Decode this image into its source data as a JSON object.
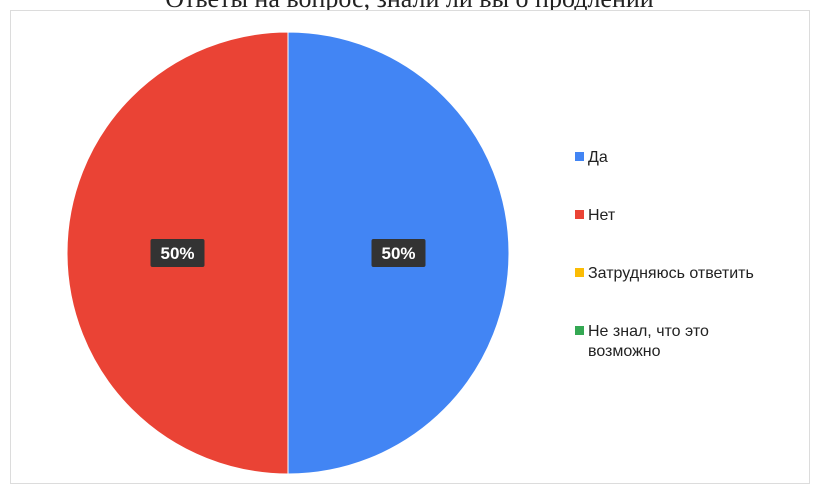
{
  "header": {
    "top_text": "Ответы на вопрос, знали ли вы о продлении"
  },
  "colors": {
    "da": "#4285f4",
    "net": "#ea4335",
    "zatr": "#fbbc04",
    "ne_znal": "#34a853",
    "label_bg": "#333333"
  },
  "chart_data": {
    "type": "pie",
    "title": "",
    "legend_position": "right",
    "slices": [
      {
        "label": "Да",
        "value": 50,
        "display": "50%",
        "color": "#4285f4"
      },
      {
        "label": "Нет",
        "value": 50,
        "display": "50%",
        "color": "#ea4335"
      },
      {
        "label": "Затрудняюсь ответить",
        "value": 0,
        "display": "",
        "color": "#fbbc04"
      },
      {
        "label": "Не знал, что это возможно",
        "value": 0,
        "display": "",
        "color": "#34a853"
      }
    ]
  },
  "legend": {
    "items": [
      {
        "lines": [
          "Да"
        ]
      },
      {
        "lines": [
          "Нет"
        ]
      },
      {
        "lines": [
          "Затрудняюсь ответить"
        ]
      },
      {
        "lines": [
          "Не знал, что это",
          "возможно"
        ]
      }
    ]
  }
}
